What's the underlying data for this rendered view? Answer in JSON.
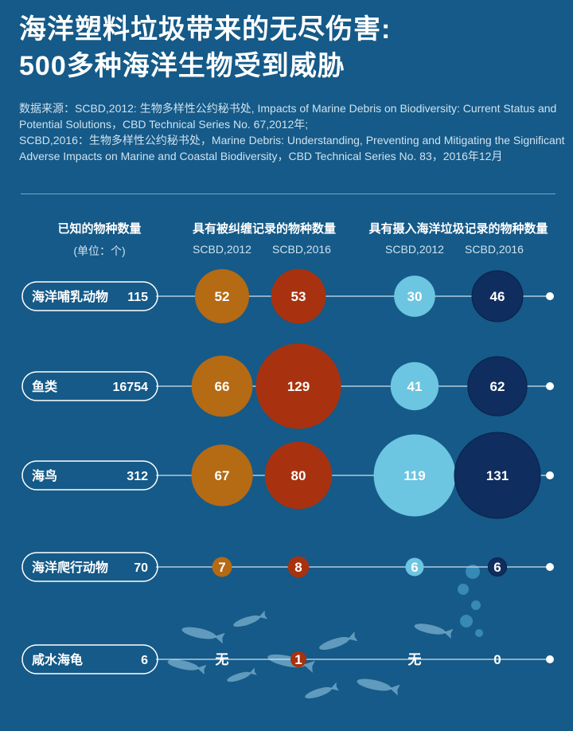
{
  "title_line1": "海洋塑料垃圾带来的无尽伤害:",
  "title_line2": "500多种海洋生物受到威胁",
  "source_line1": "数据来源：SCBD,2012: 生物多样性公约秘书处, Impacts of Marine Debris on Biodiversity: Current Status and Potential Solutions，CBD Technical Series No. 67,2012年;",
  "source_line2": "SCBD,2016：生物多样性公约秘书处，Marine Debris: Understanding, Preventing and Mitigating the Significant Adverse Impacts on Marine and Coastal Biodiversity，CBD Technical Series No. 83，2016年12月",
  "headers": {
    "known": "已知的物种数量",
    "known_unit": "(单位：个)",
    "entangle": "具有被纠缠记录的物种数量",
    "ingest": "具有摄入海洋垃圾记录的物种数量",
    "sub_2012": "SCBD,2012",
    "sub_2016": "SCBD,2016"
  },
  "colors": {
    "entangle_2012": "#b56a14",
    "entangle_2016": "#a8320f",
    "ingest_2012": "#6cc5e1",
    "ingest_2016": "#0f2d5e",
    "background": "#155a88"
  },
  "chart_data": {
    "type": "bubble",
    "rows": [
      {
        "label": "海洋哺乳动物",
        "known": "115",
        "values": [
          52,
          53,
          30,
          46
        ],
        "labels": [
          "52",
          "53",
          "30",
          "46"
        ]
      },
      {
        "label": "鱼类",
        "known": "16754",
        "values": [
          66,
          129,
          41,
          62
        ],
        "labels": [
          "66",
          "129",
          "41",
          "62"
        ]
      },
      {
        "label": "海鸟",
        "known": "312",
        "values": [
          67,
          80,
          119,
          131
        ],
        "labels": [
          "67",
          "80",
          "119",
          "131"
        ]
      },
      {
        "label": "海洋爬行动物",
        "known": "70",
        "values": [
          7,
          8,
          6,
          6
        ],
        "labels": [
          "7",
          "8",
          "6",
          "6"
        ]
      },
      {
        "label": "咸水海龟",
        "known": "6",
        "values": [
          null,
          1,
          null,
          0
        ],
        "labels": [
          "无",
          "1",
          "无",
          "0"
        ]
      }
    ],
    "columns": [
      "具有被纠缠记录的物种数量 SCBD,2012",
      "具有被纠缠记录的物种数量 SCBD,2016",
      "具有摄入海洋垃圾记录的物种数量 SCBD,2012",
      "具有摄入海洋垃圾记录的物种数量 SCBD,2016"
    ]
  }
}
